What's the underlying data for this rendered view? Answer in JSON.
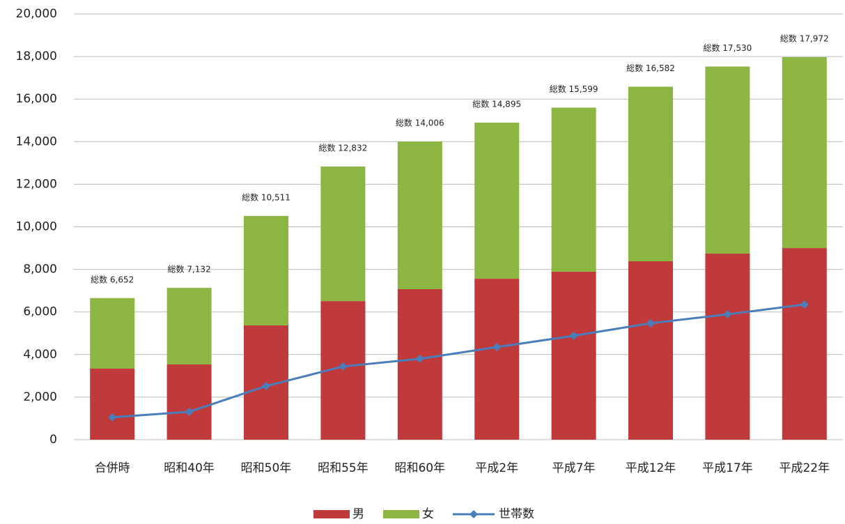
{
  "chart_data": {
    "type": "bar",
    "stacked": true,
    "categories": [
      "合併時",
      "昭和40年",
      "昭和50年",
      "昭和55年",
      "昭和60年",
      "平成2年",
      "平成7年",
      "平成12年",
      "平成17年",
      "平成22年"
    ],
    "series": [
      {
        "name": "男",
        "color": "#c0393b",
        "values": [
          3340,
          3540,
          5370,
          6510,
          7070,
          7560,
          7890,
          8380,
          8740,
          9000
        ]
      },
      {
        "name": "女",
        "color": "#8db542",
        "values": [
          3312,
          3592,
          5141,
          6322,
          6936,
          7335,
          7709,
          8202,
          8790,
          8972
        ]
      },
      {
        "name": "世帯数",
        "type": "line",
        "color": "#4a7ebb",
        "values": [
          1050,
          1310,
          2520,
          3440,
          3800,
          4350,
          4880,
          5470,
          5890,
          6350
        ]
      }
    ],
    "totals": [
      6652,
      7132,
      10511,
      12832,
      14006,
      14895,
      15599,
      16582,
      17530,
      17972
    ],
    "total_labels": [
      "総数 6,652",
      "総数 7,132",
      "総数 10,511",
      "総数 12,832",
      "総数 14,006",
      "総数 14,895",
      "総数 15,599",
      "総数 16,582",
      "総数 17,530",
      "総数 17,972"
    ],
    "ylim": [
      0,
      20000
    ],
    "yticks": [
      0,
      {
        "value": 2000,
        "label": "2,000"
      },
      {
        "value": 4000,
        "label": "4,000"
      },
      {
        "value": 6000,
        "label": "6,000"
      },
      {
        "value": 8000,
        "label": "8,000"
      },
      {
        "value": 10000,
        "label": "10,000"
      },
      {
        "value": 12000,
        "label": "12,000"
      },
      {
        "value": 14000,
        "label": "14,000"
      },
      {
        "value": 16000,
        "label": "16,000"
      },
      {
        "value": 18000,
        "label": "18,000"
      },
      {
        "value": 20000,
        "label": "20,000"
      }
    ],
    "grid": true,
    "legend": "bottom"
  }
}
